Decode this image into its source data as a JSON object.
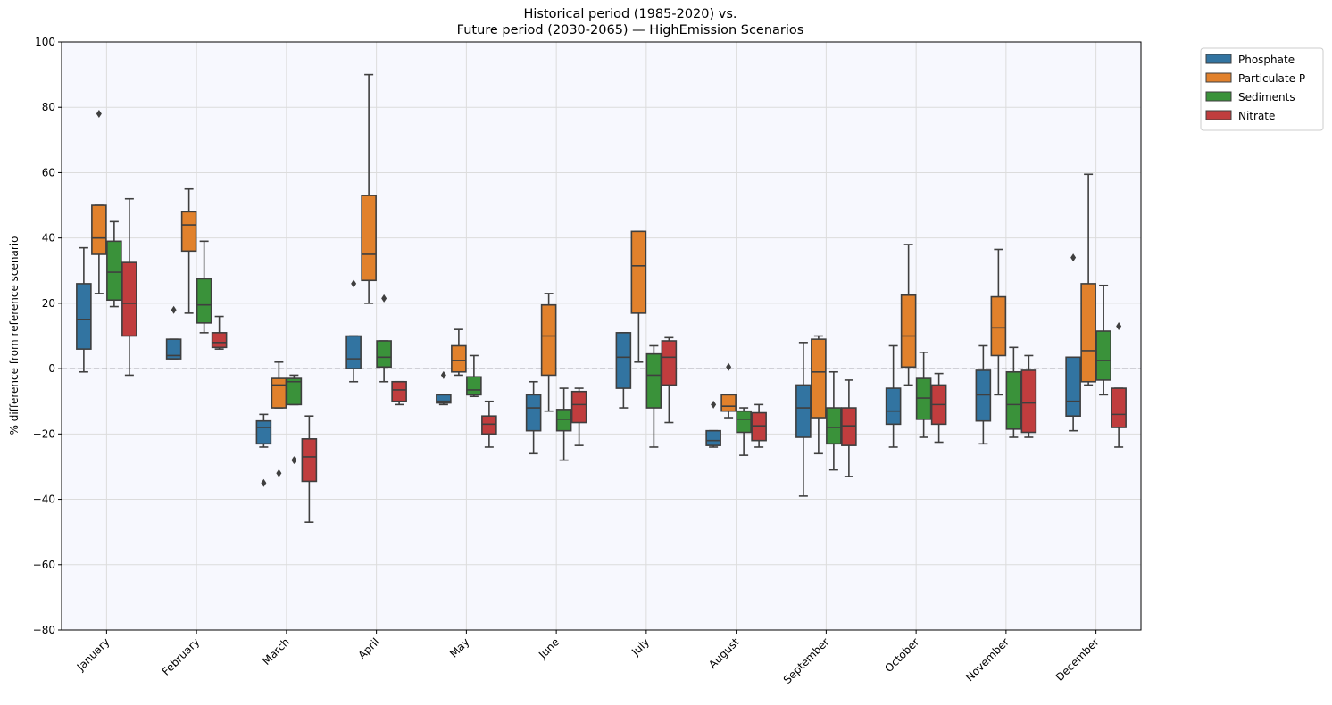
{
  "chart_data": {
    "type": "boxplot",
    "title_line1": "Historical period (1985-2020) vs.",
    "title_line2": "Future period (2030-2065) — HighEmission Scenarios",
    "xlabel": "",
    "ylabel": "% difference from reference scenario",
    "ylim": [
      -80,
      100
    ],
    "yticks": [
      -80,
      -60,
      -40,
      -20,
      0,
      20,
      40,
      60,
      80,
      100
    ],
    "reference_line": 0,
    "grid": true,
    "legend_position": "outside-top-right",
    "categories": [
      "January",
      "February",
      "March",
      "April",
      "May",
      "June",
      "July",
      "August",
      "September",
      "October",
      "November",
      "December"
    ],
    "series": [
      {
        "name": "Phosphate",
        "color": "#3274a1",
        "boxes": [
          {
            "whislo": -1,
            "q1": 6,
            "med": 15,
            "q3": 26,
            "whishi": 37,
            "fliers": []
          },
          {
            "whislo": 3,
            "q1": 3,
            "med": 4,
            "q3": 9,
            "whishi": 9,
            "fliers": [
              18
            ]
          },
          {
            "whislo": -24,
            "q1": -23,
            "med": -18,
            "q3": -16,
            "whishi": -14,
            "fliers": [
              -35
            ]
          },
          {
            "whislo": -4,
            "q1": 0,
            "med": 3,
            "q3": 10,
            "whishi": 10,
            "fliers": [
              26
            ]
          },
          {
            "whislo": -11,
            "q1": -10.5,
            "med": -10,
            "q3": -8,
            "whishi": -8,
            "fliers": [
              -2
            ]
          },
          {
            "whislo": -26,
            "q1": -19,
            "med": -12,
            "q3": -8,
            "whishi": -4,
            "fliers": []
          },
          {
            "whislo": -12,
            "q1": -6,
            "med": 3.5,
            "q3": 11,
            "whishi": 11,
            "fliers": []
          },
          {
            "whislo": -24,
            "q1": -23.5,
            "med": -22,
            "q3": -19,
            "whishi": -19,
            "fliers": [
              -11
            ]
          },
          {
            "whislo": -39,
            "q1": -21,
            "med": -12,
            "q3": -5,
            "whishi": 8,
            "fliers": []
          },
          {
            "whislo": -24,
            "q1": -17,
            "med": -13,
            "q3": -6,
            "whishi": 7,
            "fliers": []
          },
          {
            "whislo": -23,
            "q1": -16,
            "med": -8,
            "q3": -0.5,
            "whishi": 7,
            "fliers": []
          },
          {
            "whislo": -19,
            "q1": -14.5,
            "med": -10,
            "q3": 3.5,
            "whishi": 3.5,
            "fliers": [
              34
            ]
          }
        ]
      },
      {
        "name": "Particulate P",
        "color": "#e1812c",
        "boxes": [
          {
            "whislo": 23,
            "q1": 35,
            "med": 40,
            "q3": 50,
            "whishi": 50,
            "fliers": [
              78
            ]
          },
          {
            "whislo": 17,
            "q1": 36,
            "med": 44,
            "q3": 48,
            "whishi": 55,
            "fliers": []
          },
          {
            "whislo": -12,
            "q1": -12,
            "med": -5,
            "q3": -3,
            "whishi": 2,
            "fliers": [
              -32
            ]
          },
          {
            "whislo": 20,
            "q1": 27,
            "med": 35,
            "q3": 53,
            "whishi": 90,
            "fliers": []
          },
          {
            "whislo": -2,
            "q1": -1,
            "med": 2.5,
            "q3": 7,
            "whishi": 12,
            "fliers": []
          },
          {
            "whislo": -13,
            "q1": -2,
            "med": 10,
            "q3": 19.5,
            "whishi": 23,
            "fliers": []
          },
          {
            "whislo": 2,
            "q1": 17,
            "med": 31.5,
            "q3": 42,
            "whishi": 42,
            "fliers": []
          },
          {
            "whislo": -15,
            "q1": -13,
            "med": -11.5,
            "q3": -8,
            "whishi": -8,
            "fliers": [
              0.5
            ]
          },
          {
            "whislo": -26,
            "q1": -15,
            "med": -1,
            "q3": 9,
            "whishi": 10,
            "fliers": []
          },
          {
            "whislo": -5,
            "q1": 0.5,
            "med": 10,
            "q3": 22.5,
            "whishi": 38,
            "fliers": []
          },
          {
            "whislo": -8,
            "q1": 4,
            "med": 12.5,
            "q3": 22,
            "whishi": 36.5,
            "fliers": []
          },
          {
            "whislo": -5,
            "q1": -4,
            "med": 5.5,
            "q3": 26,
            "whishi": 59.5,
            "fliers": []
          }
        ]
      },
      {
        "name": "Sediments",
        "color": "#3a923a",
        "boxes": [
          {
            "whislo": 19,
            "q1": 21,
            "med": 29.5,
            "q3": 39,
            "whishi": 45,
            "fliers": []
          },
          {
            "whislo": 11,
            "q1": 14,
            "med": 19.5,
            "q3": 27.5,
            "whishi": 39,
            "fliers": []
          },
          {
            "whislo": -11,
            "q1": -11,
            "med": -4,
            "q3": -3,
            "whishi": -2,
            "fliers": [
              -28
            ]
          },
          {
            "whislo": -4,
            "q1": 0.5,
            "med": 3.5,
            "q3": 8.5,
            "whishi": 8.5,
            "fliers": [
              21.5
            ]
          },
          {
            "whislo": -8.5,
            "q1": -8,
            "med": -6.5,
            "q3": -2.5,
            "whishi": 4,
            "fliers": []
          },
          {
            "whislo": -28,
            "q1": -19,
            "med": -15.5,
            "q3": -12.5,
            "whishi": -6,
            "fliers": []
          },
          {
            "whislo": -24,
            "q1": -12,
            "med": -2,
            "q3": 4.5,
            "whishi": 7,
            "fliers": []
          },
          {
            "whislo": -26.5,
            "q1": -19.5,
            "med": -15.5,
            "q3": -13,
            "whishi": -12,
            "fliers": []
          },
          {
            "whislo": -31,
            "q1": -23,
            "med": -18,
            "q3": -12,
            "whishi": -1,
            "fliers": []
          },
          {
            "whislo": -21,
            "q1": -15.5,
            "med": -9,
            "q3": -3,
            "whishi": 5,
            "fliers": []
          },
          {
            "whislo": -21,
            "q1": -18.5,
            "med": -11,
            "q3": -1,
            "whishi": 6.5,
            "fliers": []
          },
          {
            "whislo": -8,
            "q1": -3.5,
            "med": 2.5,
            "q3": 11.5,
            "whishi": 25.5,
            "fliers": []
          }
        ]
      },
      {
        "name": "Nitrate",
        "color": "#c03d3e",
        "boxes": [
          {
            "whislo": -2,
            "q1": 10,
            "med": 20,
            "q3": 32.5,
            "whishi": 52,
            "fliers": []
          },
          {
            "whislo": 6,
            "q1": 6.5,
            "med": 8,
            "q3": 11,
            "whishi": 16,
            "fliers": []
          },
          {
            "whislo": -47,
            "q1": -34.5,
            "med": -27,
            "q3": -21.5,
            "whishi": -14.5,
            "fliers": []
          },
          {
            "whislo": -11,
            "q1": -10,
            "med": -6.5,
            "q3": -4,
            "whishi": -4,
            "fliers": []
          },
          {
            "whislo": -24,
            "q1": -20,
            "med": -17,
            "q3": -14.5,
            "whishi": -10,
            "fliers": []
          },
          {
            "whislo": -23.5,
            "q1": -16.5,
            "med": -11,
            "q3": -7,
            "whishi": -6,
            "fliers": []
          },
          {
            "whislo": -16.5,
            "q1": -5,
            "med": 3.5,
            "q3": 8.5,
            "whishi": 9.5,
            "fliers": []
          },
          {
            "whislo": -24,
            "q1": -22,
            "med": -17.5,
            "q3": -13.5,
            "whishi": -11,
            "fliers": []
          },
          {
            "whislo": -33,
            "q1": -23.5,
            "med": -17.5,
            "q3": -12,
            "whishi": -3.5,
            "fliers": []
          },
          {
            "whislo": -22.5,
            "q1": -17,
            "med": -11,
            "q3": -5,
            "whishi": -1.5,
            "fliers": []
          },
          {
            "whislo": -21,
            "q1": -19.5,
            "med": -10.5,
            "q3": -0.5,
            "whishi": 4,
            "fliers": []
          },
          {
            "whislo": -24,
            "q1": -18,
            "med": -14,
            "q3": -6,
            "whishi": -6,
            "fliers": [
              13
            ]
          }
        ]
      }
    ],
    "colors": {
      "plot_background": "#f7f8fe",
      "grid": "#dcdcdc",
      "reference_line": "#a9a9b0",
      "edge": "#3f3f3f"
    }
  }
}
